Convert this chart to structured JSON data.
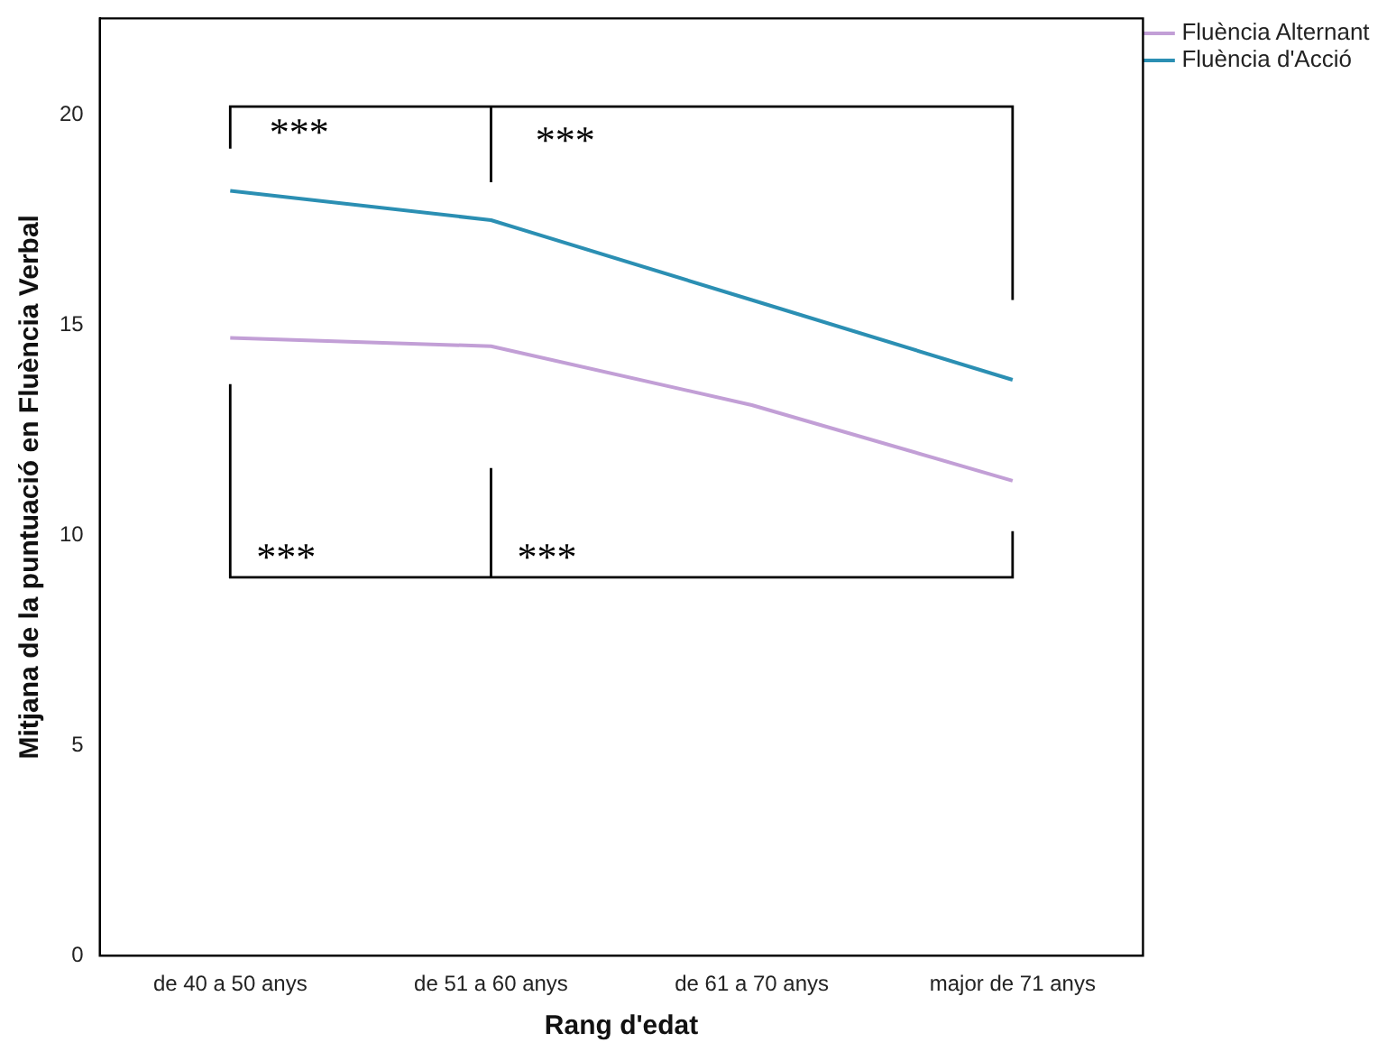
{
  "chart_data": {
    "type": "line",
    "xlabel": "Rang d'edat",
    "ylabel": "Mitjana de la puntuació en Fluència Verbal",
    "categories": [
      "de 40 a 50 anys",
      "de 51 a 60 anys",
      "de 61 a 70 anys",
      "major de 71 anys"
    ],
    "series": [
      {
        "name": "Fluència Alternant",
        "color": "#c29fd6",
        "values": [
          14.7,
          14.5,
          13.1,
          11.3
        ]
      },
      {
        "name": "Fluència d'Acció",
        "color": "#2b8fb3",
        "values": [
          18.2,
          17.5,
          15.6,
          13.7
        ]
      }
    ],
    "ylim": [
      0,
      22.3
    ],
    "yticks": [
      0,
      5,
      10,
      15,
      20
    ],
    "grid": false,
    "legend": "top right",
    "marker": "none",
    "line_style": "solid",
    "annotations": [
      "***",
      "***",
      "***",
      "***"
    ]
  }
}
